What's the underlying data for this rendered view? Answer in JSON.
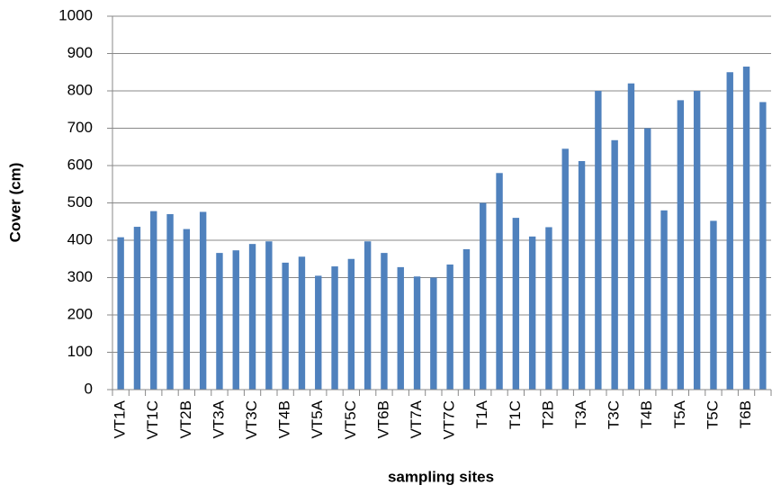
{
  "chart_data": {
    "type": "bar",
    "x_label": "sampling sites",
    "y_label": "Cover (cm)",
    "categories": [
      "VT1A",
      null,
      "VT1C",
      null,
      "VT2B",
      null,
      "VT3A",
      null,
      "VT3C",
      null,
      "VT4B",
      null,
      "VT5A",
      null,
      "VT5C",
      null,
      "VT6B",
      null,
      "VT7A",
      null,
      "VT7C",
      null,
      "T1A",
      null,
      "T1C",
      null,
      "T2B",
      null,
      "T3A",
      null,
      "T3C",
      null,
      "T4B",
      null,
      "T5A",
      null,
      "T5C",
      null,
      "T6B",
      null
    ],
    "values": [
      408,
      436,
      478,
      470,
      430,
      476,
      366,
      373,
      390,
      397,
      340,
      356,
      305,
      330,
      350,
      397,
      366,
      328,
      303,
      300,
      335,
      376,
      500,
      580,
      460,
      410,
      435,
      645,
      612,
      800,
      668,
      820,
      700,
      480,
      775,
      800,
      452,
      850,
      865,
      770
    ],
    "color": "#4f81bd",
    "ylim": [
      0,
      1000
    ],
    "yticks": [
      0,
      100,
      200,
      300,
      400,
      500,
      600,
      700,
      800,
      900,
      1000
    ],
    "grid": true
  }
}
